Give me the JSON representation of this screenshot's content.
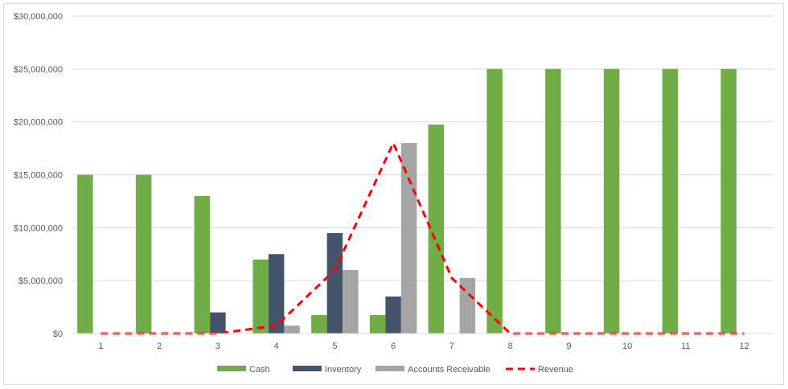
{
  "chart_data": {
    "type": "bar",
    "title": "",
    "xlabel": "",
    "ylabel": "",
    "categories": [
      "1",
      "2",
      "3",
      "4",
      "5",
      "6",
      "7",
      "8",
      "9",
      "10",
      "11",
      "12"
    ],
    "ylim": [
      0,
      30000000
    ],
    "yticks": [
      0,
      5000000,
      10000000,
      15000000,
      20000000,
      25000000,
      30000000
    ],
    "ytick_labels": [
      "$0",
      "$5,000,000",
      "$10,000,000",
      "$15,000,000",
      "$20,000,000",
      "$25,000,000",
      "$30,000,000"
    ],
    "grid": true,
    "legend_position": "bottom",
    "series": [
      {
        "name": "Cash",
        "type": "bar",
        "color": "#70ad47",
        "values": [
          15000000,
          15000000,
          13000000,
          7000000,
          1750000,
          1750000,
          19750000,
          25000000,
          25000000,
          25000000,
          25000000,
          25000000
        ]
      },
      {
        "name": "Inventory",
        "type": "bar",
        "color": "#44546a",
        "values": [
          0,
          0,
          2000000,
          7500000,
          9500000,
          3500000,
          0,
          0,
          0,
          0,
          0,
          0
        ]
      },
      {
        "name": "Accounts Receivable",
        "type": "bar",
        "color": "#a5a5a5",
        "values": [
          0,
          0,
          0,
          750000,
          6000000,
          18000000,
          5250000,
          0,
          0,
          0,
          0,
          0
        ]
      },
      {
        "name": "Revenue",
        "type": "line",
        "style": "dashed",
        "color": "#ff0000",
        "values": [
          0,
          0,
          0,
          750000,
          6000000,
          18000000,
          5250000,
          0,
          0,
          0,
          0,
          0
        ]
      }
    ]
  }
}
